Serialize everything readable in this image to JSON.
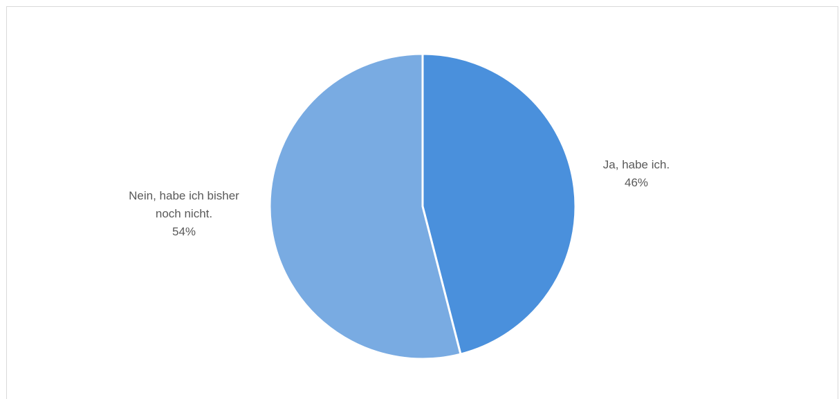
{
  "chart_data": {
    "type": "pie",
    "title": "",
    "slices": [
      {
        "label_lines": [
          "Ja, habe ich."
        ],
        "value": 46,
        "percent_label": "46%",
        "color": "#4a90dc"
      },
      {
        "label_lines": [
          "Nein, habe ich bisher",
          "noch nicht."
        ],
        "value": 54,
        "percent_label": "54%",
        "color": "#79abe2"
      }
    ],
    "legend": "none",
    "separator_color": "#ffffff"
  }
}
